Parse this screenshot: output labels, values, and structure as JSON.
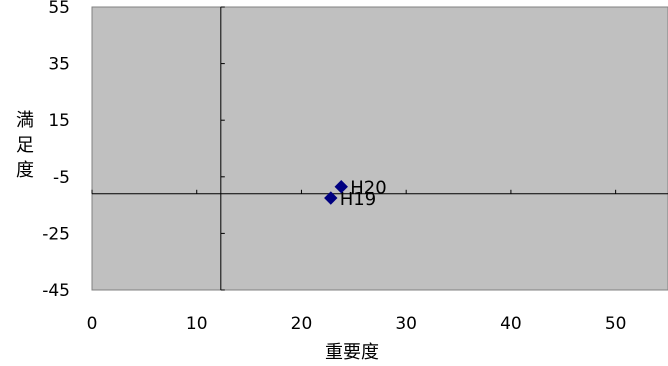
{
  "chart_data": {
    "type": "scatter",
    "title": "",
    "xlabel": "重要度",
    "ylabel": "満足度",
    "xlim": [
      0,
      55
    ],
    "ylim": [
      -45,
      55
    ],
    "x_ticks": [
      0,
      10,
      20,
      30,
      40,
      50
    ],
    "y_ticks": [
      55,
      35,
      15,
      -5,
      -25,
      -45
    ],
    "x_tick_labels": [
      "0",
      "10",
      "20",
      "30",
      "40",
      "50"
    ],
    "y_tick_labels": [
      "55",
      "35",
      "15",
      "-5",
      "-25",
      "-45"
    ],
    "reference_lines": {
      "x": 12.3,
      "y": -11
    },
    "grid": false,
    "legend": "none",
    "points": [
      {
        "label": "H19",
        "x": 22.8,
        "y": -12.5
      },
      {
        "label": "H20",
        "x": 23.8,
        "y": -8.5
      }
    ],
    "colors": {
      "plot_background": "#c0c0c0",
      "marker": "#000080",
      "axis": "#000000"
    }
  }
}
